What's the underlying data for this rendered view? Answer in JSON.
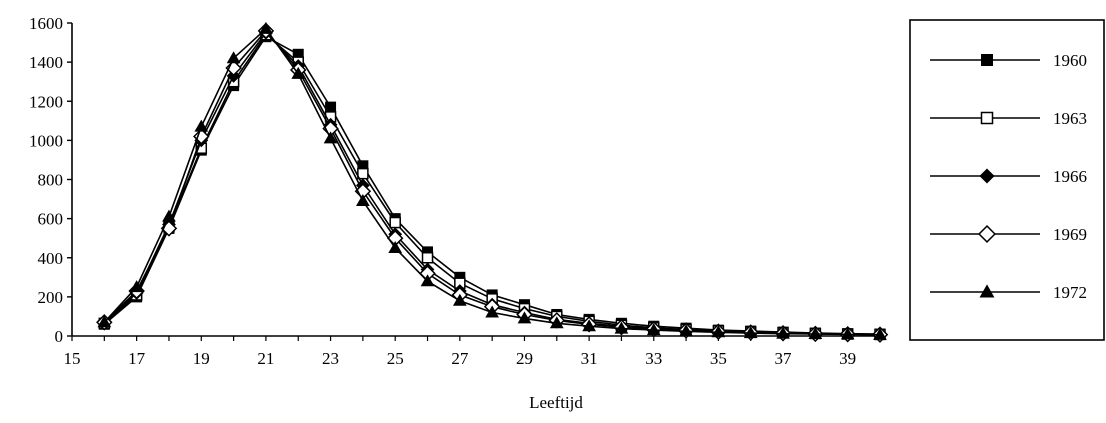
{
  "chart_data": {
    "type": "line",
    "title": "",
    "xlabel": "Leeftijd",
    "ylabel": "",
    "xlim": [
      15,
      40
    ],
    "ylim": [
      0,
      1600
    ],
    "x_ticks": [
      "15",
      "17",
      "19",
      "21",
      "23",
      "25",
      "27",
      "29",
      "31",
      "33",
      "35",
      "37",
      "39"
    ],
    "y_ticks": [
      "0",
      "200",
      "400",
      "600",
      "800",
      "1000",
      "1200",
      "1400",
      "1600"
    ],
    "grid": false,
    "legend_position": "right",
    "x": [
      16,
      17,
      18,
      19,
      20,
      21,
      22,
      23,
      24,
      25,
      26,
      27,
      28,
      29,
      30,
      31,
      32,
      33,
      34,
      35,
      36,
      37,
      38,
      39,
      40
    ],
    "series": [
      {
        "name": "1960",
        "marker": "filled-square",
        "values": [
          60,
          200,
          550,
          950,
          1280,
          1530,
          1440,
          1170,
          870,
          600,
          430,
          300,
          210,
          160,
          110,
          85,
          65,
          50,
          40,
          30,
          25,
          20,
          15,
          12,
          10
        ]
      },
      {
        "name": "1963",
        "marker": "open-square",
        "values": [
          65,
          210,
          560,
          960,
          1300,
          1540,
          1400,
          1120,
          830,
          580,
          400,
          270,
          190,
          140,
          100,
          75,
          55,
          42,
          33,
          26,
          20,
          16,
          13,
          10,
          8
        ]
      },
      {
        "name": "1966",
        "marker": "filled-diamond",
        "values": [
          65,
          220,
          570,
          1000,
          1330,
          1550,
          1380,
          1080,
          770,
          520,
          340,
          230,
          160,
          120,
          85,
          65,
          48,
          37,
          30,
          24,
          19,
          15,
          12,
          10,
          8
        ]
      },
      {
        "name": "1969",
        "marker": "open-diamond",
        "values": [
          70,
          230,
          550,
          1020,
          1370,
          1560,
          1360,
          1060,
          740,
          500,
          320,
          210,
          150,
          110,
          80,
          60,
          45,
          35,
          28,
          22,
          18,
          14,
          11,
          9,
          7
        ]
      },
      {
        "name": "1972",
        "marker": "filled-triangle",
        "values": [
          70,
          250,
          610,
          1070,
          1420,
          1570,
          1340,
          1010,
          690,
          450,
          280,
          180,
          120,
          90,
          65,
          50,
          38,
          30,
          24,
          19,
          15,
          12,
          10,
          8,
          6
        ]
      }
    ]
  }
}
